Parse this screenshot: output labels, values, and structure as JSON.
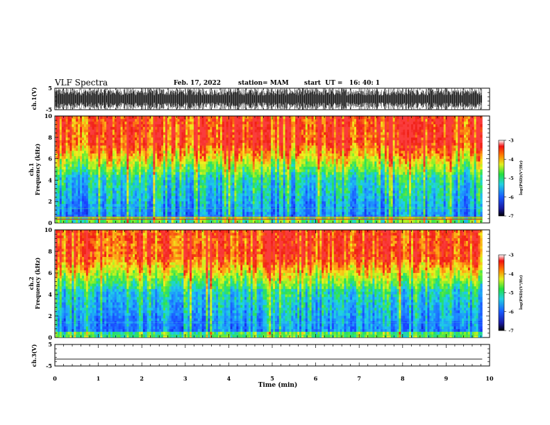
{
  "header": {
    "title": "VLF Spectra",
    "date": "Feb. 17, 2022",
    "station": "station= MAM",
    "start": "start  UT =   16: 40: 1"
  },
  "chart_data": [
    {
      "type": "line",
      "name": "ch1-waveform",
      "ylabel": "ch.1(V)",
      "ylim": [
        -5,
        5
      ],
      "yticks": [
        "5",
        "-5"
      ],
      "xlim": [
        0,
        10
      ],
      "note_visual": "dense black noise waveform"
    },
    {
      "type": "heatmap",
      "name": "ch1-spectrogram",
      "ylabel_1": "ch.1",
      "ylabel_2": "Frequency (kHz)",
      "ylim": [
        0,
        10
      ],
      "yticks": [
        "0",
        "2",
        "4",
        "6",
        "8",
        "10"
      ],
      "xlim": [
        0,
        10
      ],
      "data_extent_x": [
        0,
        9.83
      ],
      "colorbar": {
        "label": "log(PSD)(V²/Hz)",
        "range": [
          -7,
          -3
        ],
        "ticks": [
          "-3",
          "-4",
          "-5",
          "-6",
          "-7"
        ]
      }
    },
    {
      "type": "heatmap",
      "name": "ch2-spectrogram",
      "ylabel_1": "ch.2",
      "ylabel_2": "Frequency (kHz)",
      "ylim": [
        0,
        10
      ],
      "yticks": [
        "0",
        "2",
        "4",
        "6",
        "8",
        "10"
      ],
      "xlim": [
        0,
        10
      ],
      "data_extent_x": [
        0,
        9.83
      ],
      "colorbar": {
        "label": "log(PSD)(V²/Hz)",
        "range": [
          -7,
          -3
        ],
        "ticks": [
          "-3",
          "-4",
          "-5",
          "-6",
          "-7"
        ]
      }
    },
    {
      "type": "line",
      "name": "ch3-waveform",
      "ylabel": "ch.3(V)",
      "ylim": [
        -5,
        5
      ],
      "yticks": [
        "5",
        "-5"
      ],
      "xlim": [
        0,
        10
      ],
      "x": [
        0,
        9.83
      ],
      "y": [
        -1.8,
        -1.8
      ]
    }
  ],
  "xaxis": {
    "label": "Time (min)",
    "ticks": [
      "0",
      "1",
      "2",
      "3",
      "4",
      "5",
      "6",
      "7",
      "8",
      "9",
      "10"
    ]
  }
}
